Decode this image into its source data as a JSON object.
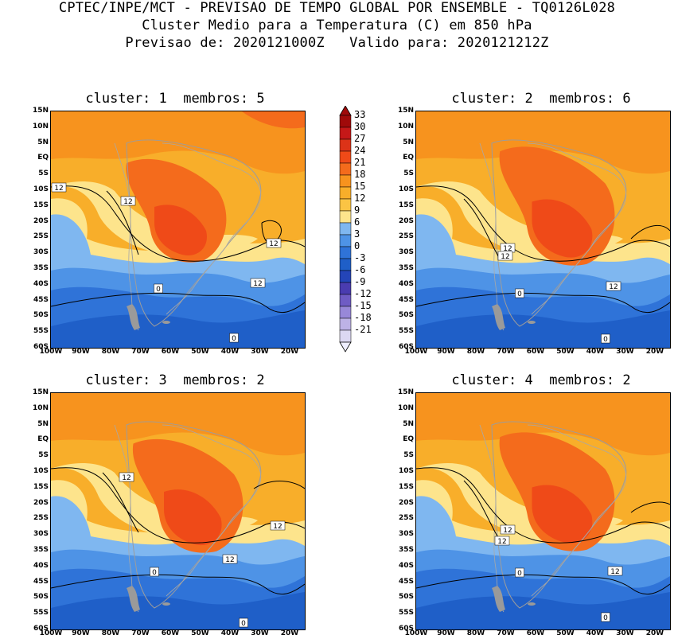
{
  "header": {
    "line1": "CPTEC/INPE/MCT - PREVISAO DE TEMPO GLOBAL POR ENSEMBLE - TQ0126L028",
    "line2": "Cluster Medio para a Temperatura (C) em 850 hPa",
    "line3": "Previsao de: 2020121000Z   Valido para: 2020121212Z"
  },
  "panels": [
    {
      "title": "cluster: 1  membros: 5",
      "contour_labels": [
        "12",
        "12",
        "12",
        "12",
        "0",
        "0"
      ]
    },
    {
      "title": "cluster: 2  membros: 6",
      "contour_labels": [
        "12",
        "12",
        "12",
        "0",
        "0"
      ]
    },
    {
      "title": "cluster: 3  membros: 2",
      "contour_labels": [
        "12",
        "12",
        "12",
        "0",
        "0"
      ]
    },
    {
      "title": "cluster: 4  membros: 2",
      "contour_labels": [
        "12",
        "12",
        "12",
        "0",
        "0"
      ]
    }
  ],
  "lat_labels": [
    "15N",
    "10N",
    "5N",
    "EQ",
    "5S",
    "10S",
    "15S",
    "20S",
    "25S",
    "30S",
    "35S",
    "40S",
    "45S",
    "50S",
    "55S",
    "60S"
  ],
  "lon_labels": [
    "100W",
    "90W",
    "80W",
    "70W",
    "60W",
    "50W",
    "40W",
    "30W",
    "20W"
  ],
  "colorbar": {
    "labels": [
      "33",
      "30",
      "27",
      "24",
      "21",
      "18",
      "15",
      "12",
      "9",
      "6",
      "3",
      "0",
      "-3",
      "-6",
      "-9",
      "-12",
      "-15",
      "-18",
      "-21"
    ],
    "colors": [
      "#a00a0a",
      "#c51818",
      "#dc3318",
      "#ef4a18",
      "#f46b1c",
      "#f7931e",
      "#f8ae2a",
      "#fbc444",
      "#fde48c",
      "#7fb7f0",
      "#4e93e6",
      "#2f73d8",
      "#1f5fc8",
      "#2445b8",
      "#4a3cb0",
      "#6f5cc4",
      "#9888d8",
      "#bdb2e6",
      "#dcd8f2"
    ]
  }
}
